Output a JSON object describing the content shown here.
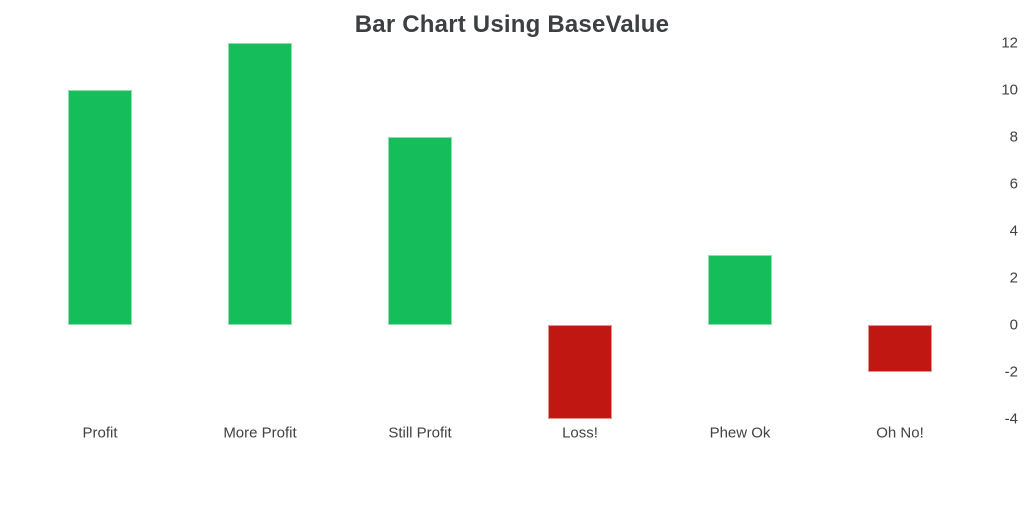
{
  "chart": {
    "title": "Bar Chart Using BaseValue"
  },
  "chart_data": {
    "type": "bar",
    "title": "Bar Chart Using BaseValue",
    "categories": [
      "Profit",
      "More Profit",
      "Still Profit",
      "Loss!",
      "Phew Ok",
      "Oh No!"
    ],
    "values": [
      10,
      12,
      8,
      -4,
      3,
      -2
    ],
    "base_value": 0,
    "xlabel": "",
    "ylabel": "",
    "ylim": [
      -4,
      12
    ],
    "y_ticks": [
      12,
      10,
      8,
      6,
      4,
      2,
      0,
      -2,
      -4
    ],
    "y_axis_position": "right",
    "grid": false,
    "legend": false,
    "colors": {
      "positive_fill": "#16bd5b",
      "positive_edge": "#8fe0ae",
      "negative_fill": "#c11713",
      "negative_edge": "#e6928d",
      "title_text": "#3c4043",
      "axis_text": "#424242",
      "background": "#ffffff"
    }
  }
}
